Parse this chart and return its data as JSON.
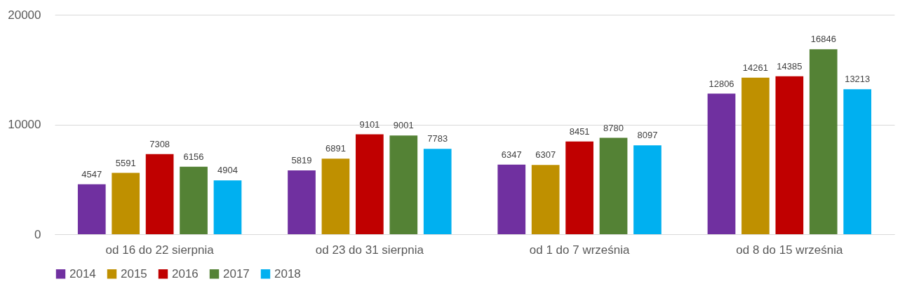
{
  "chart_data": {
    "type": "bar",
    "categories": [
      "od 16 do 22 sierpnia",
      "od 23 do 31 sierpnia",
      "od 1 do 7 września",
      "od 8 do 15 września"
    ],
    "series": [
      {
        "name": "2014",
        "color": "#7030a0",
        "values": [
          4547,
          5819,
          6347,
          12806
        ]
      },
      {
        "name": "2015",
        "color": "#bf9000",
        "values": [
          5591,
          6891,
          6307,
          14261
        ]
      },
      {
        "name": "2016",
        "color": "#c00000",
        "values": [
          7308,
          9101,
          8451,
          14385
        ]
      },
      {
        "name": "2017",
        "color": "#548235",
        "values": [
          6156,
          9001,
          8780,
          16846
        ]
      },
      {
        "name": "2018",
        "color": "#00b0f0",
        "values": [
          4904,
          7783,
          8097,
          13213
        ]
      }
    ],
    "ylim": [
      0,
      20000
    ],
    "yticks": [
      0,
      10000,
      20000
    ],
    "grid": "y",
    "legend": "bottom",
    "data_labels": true
  }
}
